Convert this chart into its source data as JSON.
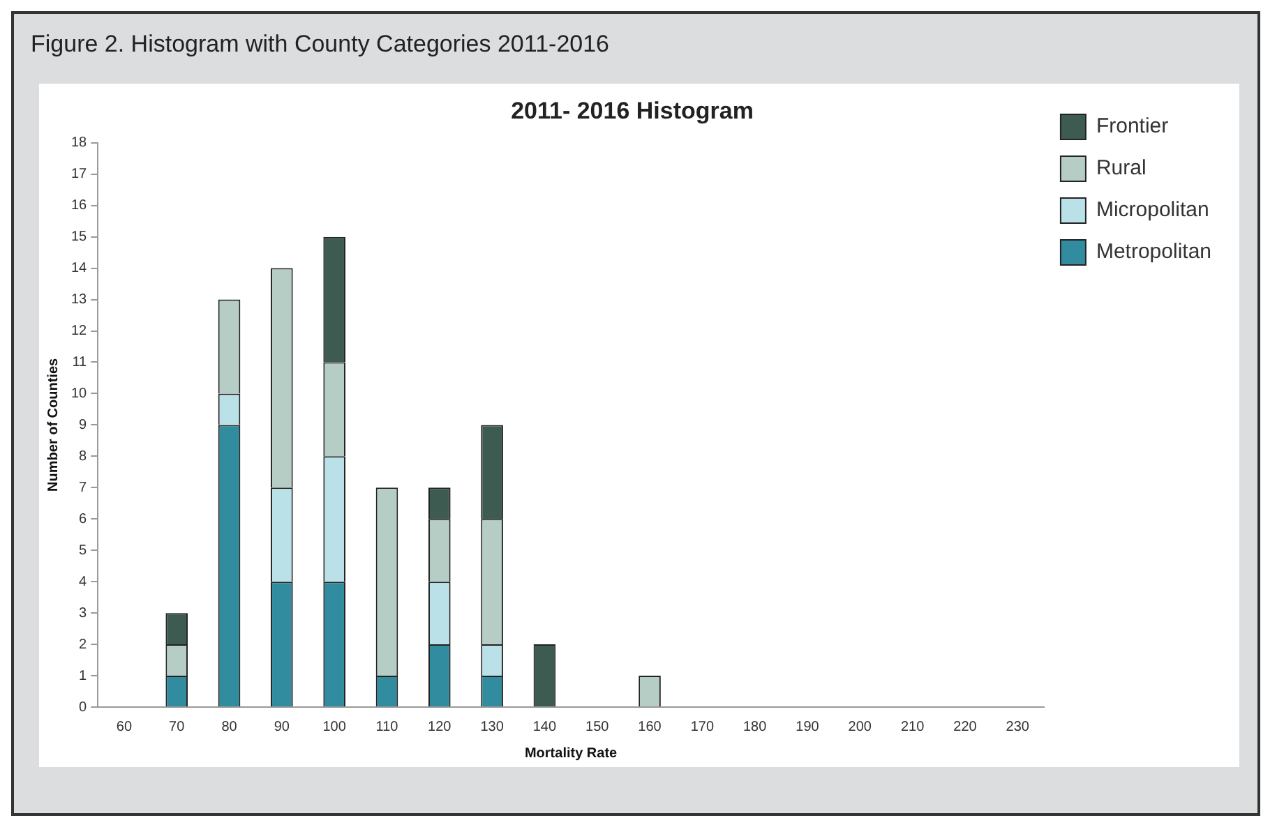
{
  "chart_data": {
    "type": "bar",
    "stacked": true,
    "title": "2011- 2016 Histogram",
    "xlabel": "Mortality Rate",
    "ylabel": "Number of Counties",
    "annotations": [
      "Figure 2. Histogram with County Categories 2011-2016"
    ],
    "categories": [
      "60",
      "70",
      "80",
      "90",
      "100",
      "110",
      "120",
      "130",
      "140",
      "150",
      "160",
      "170",
      "180",
      "190",
      "200",
      "210",
      "220",
      "230"
    ],
    "series": [
      {
        "name": "Metropolitan",
        "color": "#318ca0",
        "values": [
          0,
          1,
          9,
          4,
          4,
          1,
          2,
          1,
          0,
          0,
          0,
          0,
          0,
          0,
          0,
          0,
          0,
          0
        ]
      },
      {
        "name": "Micropolitan",
        "color": "#bae1e8",
        "values": [
          0,
          0,
          1,
          3,
          4,
          0,
          2,
          1,
          0,
          0,
          0,
          0,
          0,
          0,
          0,
          0,
          0,
          0
        ]
      },
      {
        "name": "Rural",
        "color": "#b5cdc5",
        "values": [
          0,
          1,
          3,
          7,
          3,
          6,
          2,
          4,
          0,
          0,
          1,
          0,
          0,
          0,
          0,
          0,
          0,
          0
        ]
      },
      {
        "name": "Frontier",
        "color": "#3e5b51",
        "values": [
          0,
          1,
          0,
          0,
          4,
          0,
          1,
          3,
          2,
          0,
          0,
          0,
          0,
          0,
          0,
          0,
          0,
          0
        ]
      }
    ],
    "ylim": [
      0,
      18
    ],
    "yticks": [
      0,
      1,
      2,
      3,
      4,
      5,
      6,
      7,
      8,
      9,
      10,
      11,
      12,
      13,
      14,
      15,
      16,
      17,
      18
    ],
    "grid": false,
    "legend": "top right"
  }
}
